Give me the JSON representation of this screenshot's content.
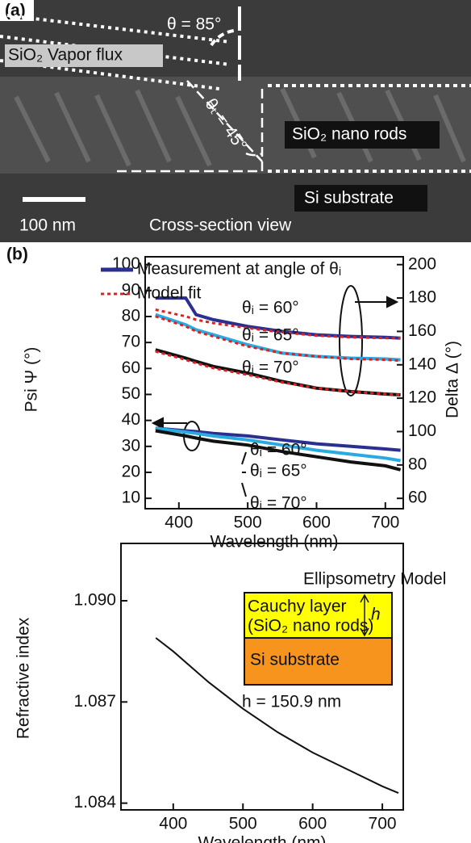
{
  "sem_image": {
    "panel_label": "(a)",
    "angle_label": "θ = 85°",
    "flux_label": "SiO₂ Vapor flux",
    "tilt_label": "θₜ = 45°",
    "rods_label": "SiO₂ nano rods",
    "substrate_label": "Si substrate",
    "scale_label": "100 nm",
    "view_label": "Cross-section view"
  },
  "chart_data": [
    {
      "type": "line",
      "panel_label": "(b)",
      "xlabel": "Wavelength (nm)",
      "ylabel": "Psi Ψ (°)",
      "y2label": "Delta Δ (°)",
      "x": [
        366,
        410,
        425,
        450,
        500,
        550,
        600,
        650,
        700,
        722
      ],
      "xlim": [
        351,
        726
      ],
      "xticks": [
        400,
        500,
        600,
        700
      ],
      "ylim": [
        6,
        103
      ],
      "yticks": [
        10,
        20,
        30,
        40,
        50,
        60,
        70,
        80,
        90,
        100
      ],
      "y2lim": [
        53.8,
        204.7
      ],
      "y2ticks": [
        60,
        80,
        100,
        120,
        140,
        160,
        180,
        200
      ],
      "legend": "upper left",
      "series": [
        {
          "name": "Measurement at angle of θᵢ",
          "color": "#2b2f8f",
          "axis": "y2",
          "values": [
            180,
            180,
            170,
            167,
            163,
            160,
            158,
            157,
            156.5,
            156
          ]
        },
        {
          "name": "Model fit",
          "color": "#e02020",
          "axis": "y2",
          "line_style": "dotted",
          "values": [
            173,
            169,
            167,
            165,
            162,
            159.5,
            157.5,
            156.5,
            156,
            156
          ]
        },
        {
          "color": "#29abe2",
          "axis": "y2",
          "values": [
            170,
            164,
            161,
            158,
            152,
            147,
            145,
            144,
            143.5,
            143
          ]
        },
        {
          "color": "#e02020",
          "axis": "y2",
          "line_style": "dotted",
          "values": [
            169,
            163,
            160,
            157,
            151,
            147,
            145,
            143.5,
            143,
            142.5
          ]
        },
        {
          "color": "#111111",
          "axis": "y2",
          "values": [
            149,
            144,
            142,
            139,
            135,
            130,
            126,
            124,
            122.5,
            122
          ]
        },
        {
          "color": "#e02020",
          "axis": "y2",
          "line_style": "dotted",
          "values": [
            148,
            143,
            141,
            138,
            134,
            129.5,
            126,
            124,
            122.5,
            122
          ]
        },
        {
          "color": "#2b2f8f",
          "values": [
            37,
            36,
            35.7,
            35,
            34,
            32.5,
            31,
            30,
            29,
            28.5
          ]
        },
        {
          "color": "#29abe2",
          "values": [
            37,
            35.5,
            35,
            34,
            32.5,
            30.5,
            28.5,
            27,
            25.5,
            24.5
          ]
        },
        {
          "color": "#111111",
          "values": [
            36,
            34,
            33.2,
            32,
            30.5,
            28,
            26,
            24,
            22.5,
            21
          ]
        }
      ],
      "annotations": [
        "θᵢ = 60°",
        "θᵢ = 65°",
        "θᵢ = 70°",
        "θᵢ = 60°",
        "θᵢ = 65°",
        "θᵢ = 70°"
      ]
    },
    {
      "type": "line",
      "xlabel": "Wavelength (nm)",
      "ylabel": "Refractive index",
      "x": [
        375,
        400,
        450,
        500,
        550,
        600,
        650,
        700,
        723
      ],
      "xlim": [
        325,
        730
      ],
      "xticks": [
        400,
        500,
        600,
        700
      ],
      "ylim": [
        1.0838,
        1.0917
      ],
      "yticks": [
        {
          "value": 1.09,
          "label": "1.090"
        },
        1.087,
        1.084
      ],
      "series": [
        {
          "color": "#111111",
          "values": [
            1.0889,
            1.0885,
            1.0876,
            1.0868,
            1.0861,
            1.0855,
            1.085,
            1.0845,
            1.0843
          ]
        }
      ],
      "inset": {
        "title": "Ellipsometry Model",
        "layer": "Cauchy layer",
        "layer_material": "(SiO₂ nano rods)",
        "thickness_symbol": "h",
        "substrate": "Si substrate",
        "thickness": "h = 150.9 nm"
      }
    }
  ]
}
